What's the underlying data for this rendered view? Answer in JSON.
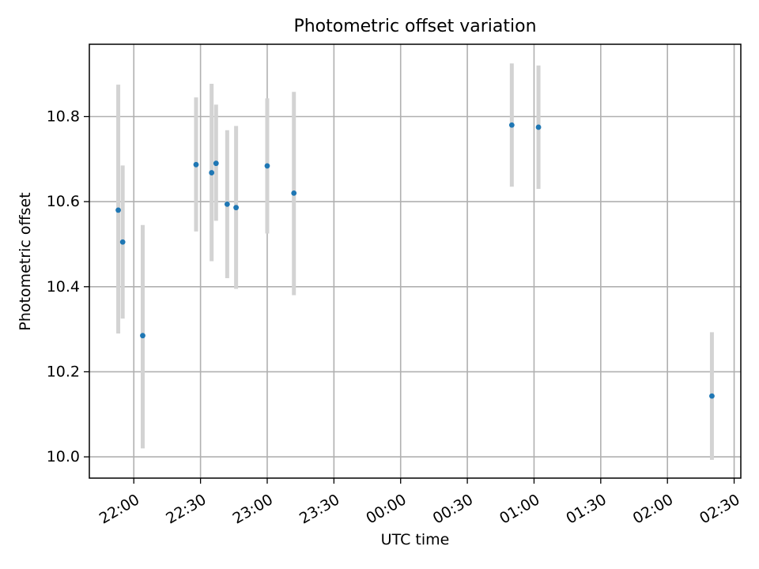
{
  "chart_data": {
    "type": "scatter",
    "title": "Photometric offset variation",
    "xlabel": "UTC time",
    "ylabel": "Photometric offset",
    "grid": true,
    "xlim": [
      "21:40",
      "02:33"
    ],
    "ylim": [
      9.95,
      10.97
    ],
    "xticks": [
      "22:00",
      "22:30",
      "23:00",
      "23:30",
      "00:00",
      "00:30",
      "01:00",
      "01:30",
      "02:00",
      "02:30"
    ],
    "yticks": [
      "10.0",
      "10.2",
      "10.4",
      "10.6",
      "10.8"
    ],
    "marker_color": "#1f77b4",
    "errorbar_color": "#d3d3d3",
    "points": [
      {
        "x": "21:53",
        "y": 10.58,
        "ylow": 10.29,
        "yhigh": 10.875
      },
      {
        "x": "21:55",
        "y": 10.505,
        "ylow": 10.325,
        "yhigh": 10.685
      },
      {
        "x": "22:04",
        "y": 10.285,
        "ylow": 10.02,
        "yhigh": 10.545
      },
      {
        "x": "22:28",
        "y": 10.687,
        "ylow": 10.53,
        "yhigh": 10.845
      },
      {
        "x": "22:35",
        "y": 10.668,
        "ylow": 10.46,
        "yhigh": 10.877
      },
      {
        "x": "22:37",
        "y": 10.69,
        "ylow": 10.555,
        "yhigh": 10.828
      },
      {
        "x": "22:42",
        "y": 10.594,
        "ylow": 10.42,
        "yhigh": 10.768
      },
      {
        "x": "22:46",
        "y": 10.586,
        "ylow": 10.395,
        "yhigh": 10.778
      },
      {
        "x": "23:00",
        "y": 10.684,
        "ylow": 10.525,
        "yhigh": 10.843
      },
      {
        "x": "23:12",
        "y": 10.62,
        "ylow": 10.38,
        "yhigh": 10.858
      },
      {
        "x": "00:50",
        "y": 10.78,
        "ylow": 10.635,
        "yhigh": 10.925
      },
      {
        "x": "01:02",
        "y": 10.775,
        "ylow": 10.63,
        "yhigh": 10.92
      },
      {
        "x": "02:20",
        "y": 10.143,
        "ylow": 9.993,
        "yhigh": 10.293
      }
    ]
  }
}
